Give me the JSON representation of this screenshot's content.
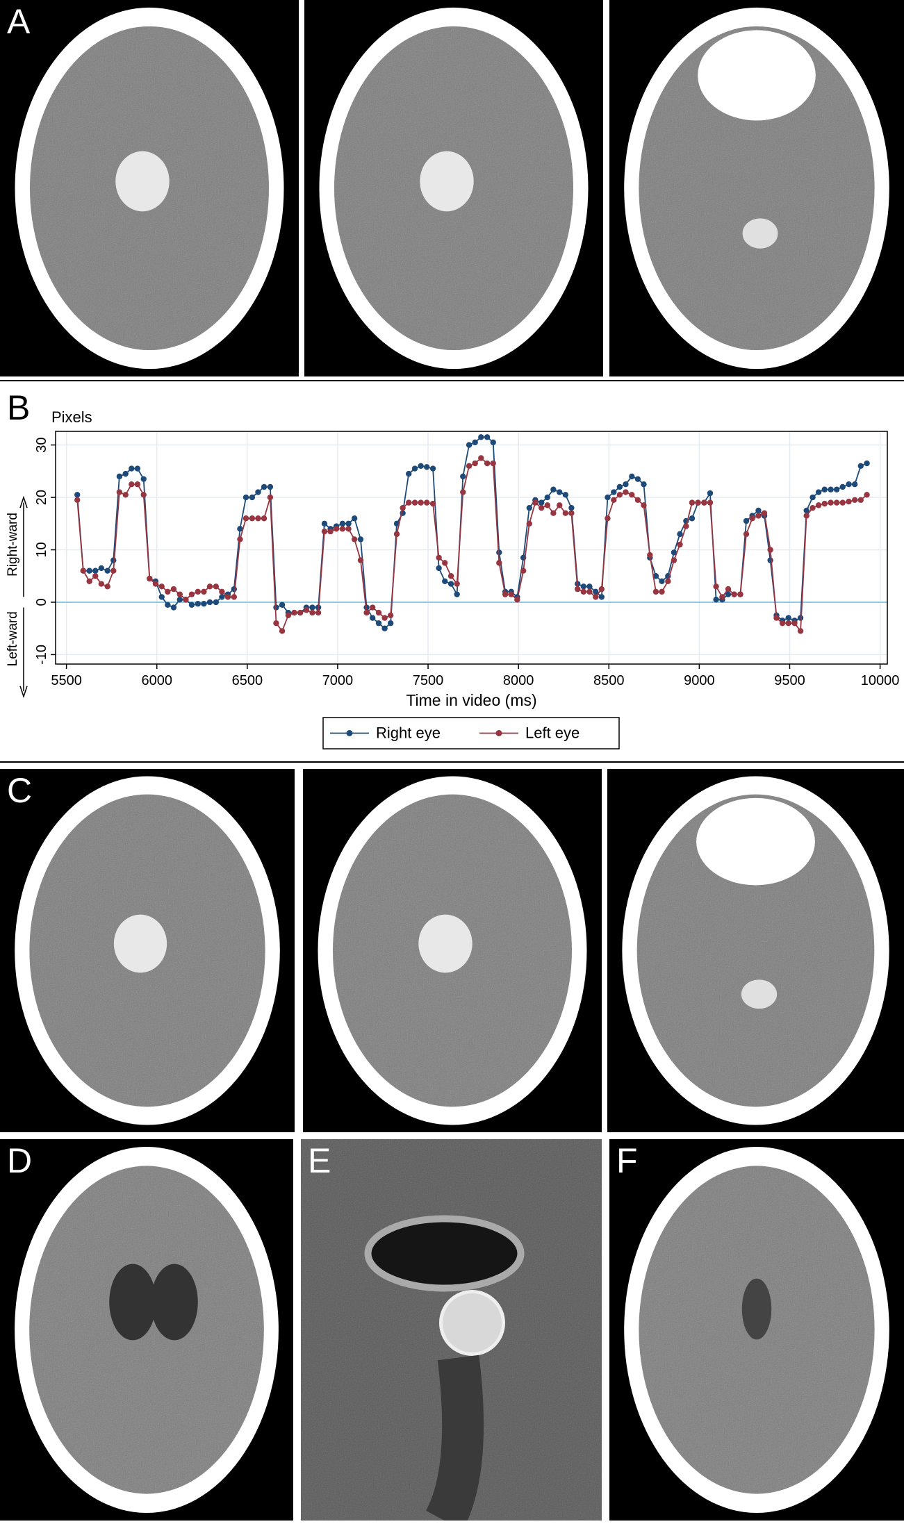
{
  "panel_labels": [
    "A",
    "C",
    "D",
    "E",
    "F"
  ],
  "chart_data": {
    "type": "line",
    "panel_label": "B",
    "title": "Pixels",
    "xlabel": "Time in video (ms)",
    "annotations": [
      "Right-ward",
      "Left-ward"
    ],
    "xlim": [
      5440,
      10040
    ],
    "ylim": [
      -11.8,
      32.6
    ],
    "xticks": [
      5500,
      6000,
      6500,
      7000,
      7500,
      8000,
      8500,
      9000,
      9500,
      10000
    ],
    "yticks": [
      -10,
      0,
      10,
      20,
      30
    ],
    "grid": true,
    "legend": "bottom",
    "x": [
      5560,
      5593,
      5627,
      5660,
      5693,
      5727,
      5760,
      5793,
      5827,
      5860,
      5893,
      5927,
      5960,
      5993,
      6027,
      6060,
      6093,
      6127,
      6160,
      6193,
      6227,
      6260,
      6293,
      6327,
      6360,
      6393,
      6427,
      6460,
      6493,
      6527,
      6560,
      6593,
      6627,
      6660,
      6693,
      6727,
      6760,
      6793,
      6827,
      6860,
      6893,
      6927,
      6960,
      6993,
      7027,
      7060,
      7093,
      7127,
      7160,
      7193,
      7227,
      7260,
      7293,
      7327,
      7360,
      7393,
      7427,
      7460,
      7493,
      7527,
      7560,
      7593,
      7627,
      7660,
      7693,
      7727,
      7760,
      7793,
      7827,
      7860,
      7893,
      7927,
      7960,
      7993,
      8027,
      8060,
      8093,
      8127,
      8160,
      8193,
      8227,
      8260,
      8293,
      8327,
      8360,
      8393,
      8427,
      8460,
      8493,
      8527,
      8560,
      8593,
      8627,
      8660,
      8693,
      8727,
      8760,
      8793,
      8827,
      8860,
      8893,
      8927,
      8960,
      8993,
      9027,
      9060,
      9093,
      9127,
      9160,
      9193,
      9227,
      9260,
      9293,
      9327,
      9360,
      9393,
      9427,
      9460,
      9493,
      9527,
      9560,
      9593,
      9627,
      9660,
      9693,
      9727,
      9760,
      9793,
      9827,
      9860,
      9893,
      9927
    ],
    "series": [
      {
        "name": "Right eye",
        "color": "#1d4a78",
        "values": [
          20.5,
          6,
          6,
          6,
          6.5,
          6,
          8,
          24,
          24.5,
          25.5,
          25.5,
          23.5,
          4.5,
          4,
          1,
          -0.5,
          -1,
          0.5,
          0.5,
          -0.5,
          -0.3,
          -0.3,
          0,
          0,
          1,
          1.5,
          2.5,
          14,
          20,
          20,
          21,
          22,
          22,
          -1,
          -0.5,
          -2,
          -2,
          -2,
          -1,
          -1,
          -1,
          15,
          14,
          14.5,
          15,
          15,
          16,
          12,
          -1,
          -3,
          -4,
          -5,
          -4,
          15,
          17,
          24.5,
          25.5,
          26,
          25.8,
          25.5,
          6.5,
          4,
          3.5,
          1.5,
          24,
          30,
          30.5,
          31.5,
          31.5,
          30.5,
          9.5,
          2,
          2,
          1,
          8.5,
          18,
          19.5,
          19,
          20,
          21.5,
          21,
          20.5,
          18,
          3.5,
          3,
          3,
          2,
          1,
          20,
          21,
          22,
          22.5,
          24,
          23.5,
          22.5,
          8.5,
          5,
          4,
          5,
          9.5,
          13,
          15.5,
          16,
          19,
          19,
          20.8,
          0.5,
          0.5,
          1.5,
          1.5,
          1.5,
          15.5,
          16.5,
          17.5,
          16.5,
          8,
          -2.5,
          -3.5,
          -3,
          -3.5,
          -3,
          17.5,
          20,
          21,
          21.5,
          21.5,
          21.5,
          22,
          22.5,
          22.5,
          26,
          26.5
        ]
      },
      {
        "name": "Left eye",
        "color": "#973541",
        "values": [
          19.5,
          6,
          4,
          5,
          3.5,
          3,
          6,
          21,
          20.5,
          22.5,
          22.5,
          20.5,
          4.5,
          3.5,
          3,
          2,
          2.5,
          1.5,
          0.5,
          1.5,
          2,
          2,
          3,
          3,
          2,
          1,
          1,
          12,
          16,
          16,
          16,
          16,
          20,
          -4,
          -5.5,
          -2.5,
          -2,
          -2,
          -1.5,
          -2,
          -2,
          13.5,
          13.5,
          14,
          14,
          14,
          12,
          8,
          -2,
          -1,
          -2,
          -3,
          -2.5,
          13,
          18,
          19,
          19,
          19,
          19,
          18.8,
          8.5,
          7.5,
          5,
          3.5,
          21,
          26,
          26.5,
          27.5,
          26.5,
          26.5,
          7.5,
          1.5,
          1.5,
          0.5,
          6,
          15,
          19,
          18,
          18.5,
          17,
          18.5,
          17,
          17,
          2.5,
          2,
          2,
          1,
          2.5,
          16,
          19.5,
          20.5,
          21,
          20.5,
          19.5,
          18.5,
          9,
          2,
          2,
          4,
          8,
          11,
          14.5,
          19,
          19,
          19,
          19,
          3,
          1,
          2.5,
          1.5,
          1.5,
          13,
          16,
          16.5,
          17,
          10,
          -3,
          -4,
          -4,
          -4,
          -5.5,
          16.5,
          18,
          18.5,
          18.8,
          19,
          19,
          19,
          19.2,
          19.5,
          19.5,
          20.5
        ]
      }
    ]
  }
}
